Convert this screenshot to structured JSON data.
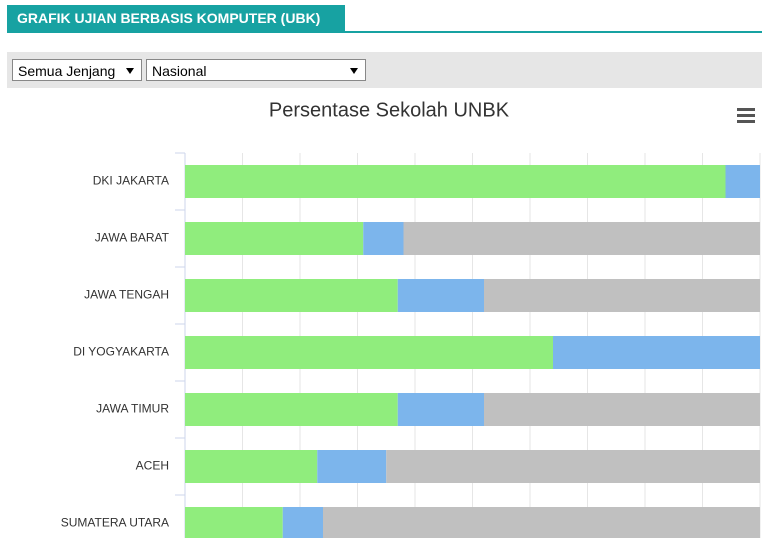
{
  "header": {
    "title": "GRAFIK UJIAN BERBASIS KOMPUTER (UBK)"
  },
  "filters": {
    "level": "Semua Jenjang",
    "region": "Nasional"
  },
  "chart_data": {
    "type": "stacked-bar-horizontal",
    "title": "Persentase Sekolah UNBK",
    "categories": [
      "DKI JAKARTA",
      "JAWA BARAT",
      "JAWA TENGAH",
      "DI YOGYAKARTA",
      "JAWA TIMUR",
      "ACEH",
      "SUMATERA UTARA"
    ],
    "series": [
      {
        "color": "#90ed7d",
        "values": [
          94,
          31,
          37,
          64,
          37,
          23,
          17
        ]
      },
      {
        "color": "#7cb5ec",
        "values": [
          6,
          7,
          15,
          36,
          15,
          12,
          7
        ]
      },
      {
        "color": "#c0c0c0",
        "values": [
          0,
          62,
          48,
          0,
          48,
          65,
          76
        ]
      }
    ],
    "xlim": [
      0,
      100
    ],
    "xticks": [
      0,
      10,
      20,
      30,
      40,
      50,
      60,
      70,
      80,
      90,
      100
    ],
    "grid": true
  }
}
